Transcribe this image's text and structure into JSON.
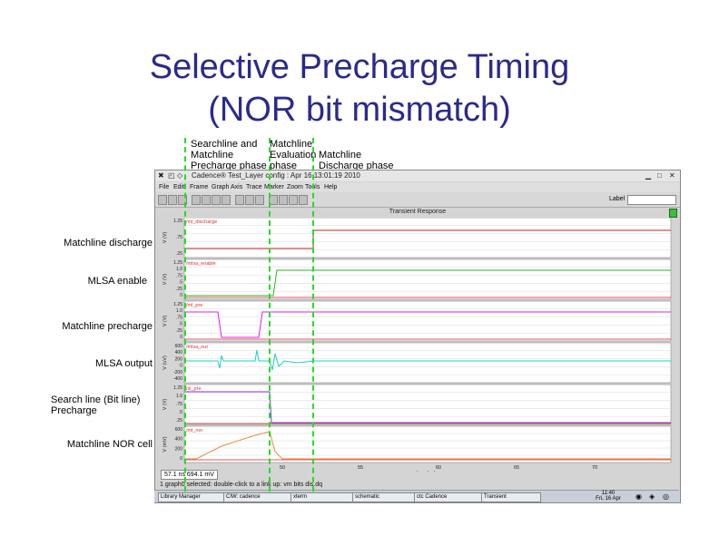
{
  "slide": {
    "title_line1": "Selective Precharge Timing",
    "title_line2": "(NOR bit mismatch)"
  },
  "phases": [
    {
      "text": "Searchline and\nMatchline\nPrecharge phase"
    },
    {
      "text": "Matchline\nEvaluation\nphase"
    },
    {
      "text": "Matchline\nDischarge phase"
    }
  ],
  "signal_labels": [
    {
      "text": "Matchline discharge"
    },
    {
      "text": "MLSA enable"
    },
    {
      "text": "Matchline precharge"
    },
    {
      "text": "MLSA output"
    },
    {
      "text": "Search line (Bit line)\nPrecharge"
    },
    {
      "text": "Matchline NOR cell"
    }
  ],
  "window": {
    "title": "Cadence® Test_Layer config : Apr 16 13:01:19 2010",
    "menu": [
      "File",
      "Edit",
      "Frame",
      "Graph",
      "Axis",
      "Trace",
      "Marker",
      "Zoom",
      "Tools",
      "Help"
    ],
    "label_field": "Label",
    "subtitle": "Transient Response",
    "status_coords": "57.1 ns   694.1 mV",
    "status_msg": "1 graph0 selected: double-click to a link up: vm bits dis.dq",
    "x_axis_label": "time (ns)"
  },
  "panels": [
    {
      "tag": "/ml_discharge",
      "ylabel": "V (V)",
      "ticks": [
        "1.25",
        ".75",
        ".25"
      ]
    },
    {
      "tag": "/mlsa_enable",
      "ylabel": "V (V)",
      "ticks": [
        "1.25",
        "1.0",
        ".75",
        ".5",
        ".25",
        "0"
      ]
    },
    {
      "tag": "/ml_pre",
      "ylabel": "V (V)",
      "ticks": [
        "1.25",
        "1.0",
        ".75",
        ".5",
        ".25",
        "0"
      ]
    },
    {
      "tag": "/mlsa_out",
      "ylabel": "V (uV)",
      "ticks": [
        "600",
        "400",
        "200",
        "0",
        "-200",
        "-400"
      ]
    },
    {
      "tag": "/sl_pre",
      "ylabel": "V (V)",
      "ticks": [
        "1.25",
        "1.0",
        ".75",
        ".5",
        ".25"
      ]
    },
    {
      "tag": "/ml_nor",
      "ylabel": "V (mV)",
      "ticks": [
        "600",
        "400",
        "200",
        "0"
      ]
    }
  ],
  "x_ticks": [
    "50",
    "55",
    "60",
    "65",
    "70"
  ],
  "colors": {
    "title": "#2a2a8c",
    "marker": "#22dd22",
    "trace_red": "#cc2222",
    "trace_green": "#22bb22",
    "trace_magenta": "#dd22dd",
    "trace_cyan": "#22cccc",
    "trace_purple": "#8833ee",
    "trace_orange": "#ee8844"
  },
  "taskbar": {
    "tasks": [
      "Library Manager",
      "CIW: cadence",
      "xterm",
      "schematic",
      "ctc Cadence",
      "Transient"
    ],
    "clock_time": "11:40",
    "clock_day": "Fri, 16 Apr"
  }
}
